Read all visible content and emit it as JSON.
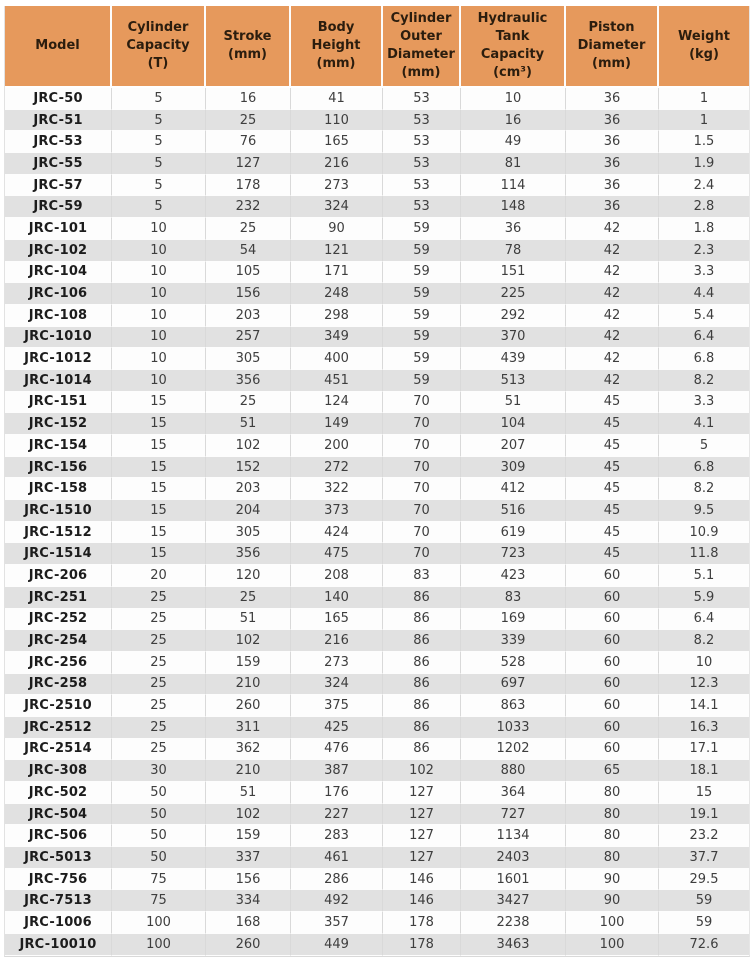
{
  "colors": {
    "header_bg": "#E6995C",
    "header_text": "#2B1D0E",
    "row_alt_bg": "#E1E1E1",
    "row_bg": "#FDFDFD",
    "model_text": "#1C1C1C",
    "value_text": "#3E3E3E",
    "grid_line": "#D9D9D9"
  },
  "chart_data": {
    "type": "table",
    "columns": [
      {
        "key": "model",
        "label": "Model"
      },
      {
        "key": "cylinder-capacity",
        "label": "Cylinder\nCapacity\n(T)"
      },
      {
        "key": "stroke",
        "label": "Stroke\n(mm)"
      },
      {
        "key": "body-height",
        "label": "Body\nHeight\n(mm)"
      },
      {
        "key": "cylinder-outer-diameter",
        "label": "Cylinder\nOuter\nDiameter\n(mm)"
      },
      {
        "key": "hydraulic-tank-capacity",
        "label": "Hydraulic\nTank\nCapacity\n(cm³)"
      },
      {
        "key": "piston-diameter",
        "label": "Piston\nDiameter\n(mm)"
      },
      {
        "key": "weight",
        "label": "Weight\n(kg)"
      }
    ],
    "rows": [
      [
        "JRC-50",
        "5",
        "16",
        "41",
        "53",
        "10",
        "36",
        "1"
      ],
      [
        "JRC-51",
        "5",
        "25",
        "110",
        "53",
        "16",
        "36",
        "1"
      ],
      [
        "JRC-53",
        "5",
        "76",
        "165",
        "53",
        "49",
        "36",
        "1.5"
      ],
      [
        "JRC-55",
        "5",
        "127",
        "216",
        "53",
        "81",
        "36",
        "1.9"
      ],
      [
        "JRC-57",
        "5",
        "178",
        "273",
        "53",
        "114",
        "36",
        "2.4"
      ],
      [
        "JRC-59",
        "5",
        "232",
        "324",
        "53",
        "148",
        "36",
        "2.8"
      ],
      [
        "JRC-101",
        "10",
        "25",
        "90",
        "59",
        "36",
        "42",
        "1.8"
      ],
      [
        "JRC-102",
        "10",
        "54",
        "121",
        "59",
        "78",
        "42",
        "2.3"
      ],
      [
        "JRC-104",
        "10",
        "105",
        "171",
        "59",
        "151",
        "42",
        "3.3"
      ],
      [
        "JRC-106",
        "10",
        "156",
        "248",
        "59",
        "225",
        "42",
        "4.4"
      ],
      [
        "JRC-108",
        "10",
        "203",
        "298",
        "59",
        "292",
        "42",
        "5.4"
      ],
      [
        "JRC-1010",
        "10",
        "257",
        "349",
        "59",
        "370",
        "42",
        "6.4"
      ],
      [
        "JRC-1012",
        "10",
        "305",
        "400",
        "59",
        "439",
        "42",
        "6.8"
      ],
      [
        "JRC-1014",
        "10",
        "356",
        "451",
        "59",
        "513",
        "42",
        "8.2"
      ],
      [
        "JRC-151",
        "15",
        "25",
        "124",
        "70",
        "51",
        "45",
        "3.3"
      ],
      [
        "JRC-152",
        "15",
        "51",
        "149",
        "70",
        "104",
        "45",
        "4.1"
      ],
      [
        "JRC-154",
        "15",
        "102",
        "200",
        "70",
        "207",
        "45",
        "5"
      ],
      [
        "JRC-156",
        "15",
        "152",
        "272",
        "70",
        "309",
        "45",
        "6.8"
      ],
      [
        "JRC-158",
        "15",
        "203",
        "322",
        "70",
        "412",
        "45",
        "8.2"
      ],
      [
        "JRC-1510",
        "15",
        "204",
        "373",
        "70",
        "516",
        "45",
        "9.5"
      ],
      [
        "JRC-1512",
        "15",
        "305",
        "424",
        "70",
        "619",
        "45",
        "10.9"
      ],
      [
        "JRC-1514",
        "15",
        "356",
        "475",
        "70",
        "723",
        "45",
        "11.8"
      ],
      [
        "JRC-206",
        "20",
        "120",
        "208",
        "83",
        "423",
        "60",
        "5.1"
      ],
      [
        "JRC-251",
        "25",
        "25",
        "140",
        "86",
        "83",
        "60",
        "5.9"
      ],
      [
        "JRC-252",
        "25",
        "51",
        "165",
        "86",
        "169",
        "60",
        "6.4"
      ],
      [
        "JRC-254",
        "25",
        "102",
        "216",
        "86",
        "339",
        "60",
        "8.2"
      ],
      [
        "JRC-256",
        "25",
        "159",
        "273",
        "86",
        "528",
        "60",
        "10"
      ],
      [
        "JRC-258",
        "25",
        "210",
        "324",
        "86",
        "697",
        "60",
        "12.3"
      ],
      [
        "JRC-2510",
        "25",
        "260",
        "375",
        "86",
        "863",
        "60",
        "14.1"
      ],
      [
        "JRC-2512",
        "25",
        "311",
        "425",
        "86",
        "1033",
        "60",
        "16.3"
      ],
      [
        "JRC-2514",
        "25",
        "362",
        "476",
        "86",
        "1202",
        "60",
        "17.1"
      ],
      [
        "JRC-308",
        "30",
        "210",
        "387",
        "102",
        "880",
        "65",
        "18.1"
      ],
      [
        "JRC-502",
        "50",
        "51",
        "176",
        "127",
        "364",
        "80",
        "15"
      ],
      [
        "JRC-504",
        "50",
        "102",
        "227",
        "127",
        "727",
        "80",
        "19.1"
      ],
      [
        "JRC-506",
        "50",
        "159",
        "283",
        "127",
        "1134",
        "80",
        "23.2"
      ],
      [
        "JRC-5013",
        "50",
        "337",
        "461",
        "127",
        "2403",
        "80",
        "37.7"
      ],
      [
        "JRC-756",
        "75",
        "156",
        "286",
        "146",
        "1601",
        "90",
        "29.5"
      ],
      [
        "JRC-7513",
        "75",
        "334",
        "492",
        "146",
        "3427",
        "90",
        "59"
      ],
      [
        "JRC-1006",
        "100",
        "168",
        "357",
        "178",
        "2238",
        "100",
        "59"
      ],
      [
        "JRC-10010",
        "100",
        "260",
        "449",
        "178",
        "3463",
        "100",
        "72.6"
      ]
    ]
  }
}
